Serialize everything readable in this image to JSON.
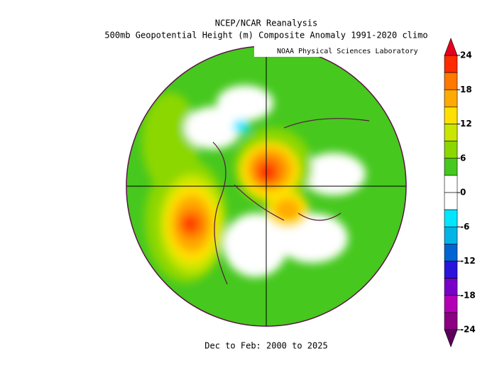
{
  "title": "NCEP/NCAR Reanalysis",
  "subtitle": "500mb Geopotential Height (m) Composite Anomaly 1991-2020 climo",
  "credit": "NOAA Physical Sciences Laboratory",
  "footer": "Dec to Feb: 2000 to 2025",
  "colorbar": {
    "ticks": [
      24,
      18,
      12,
      6,
      0,
      -6,
      -12,
      -18,
      -24
    ],
    "colors": [
      "#ff2a00",
      "#ff7800",
      "#ffaa00",
      "#ffe000",
      "#c8e600",
      "#8cd700",
      "#46c81e",
      "#ffffff",
      "#ffffff",
      "#00e6ff",
      "#00b4e6",
      "#0064d2",
      "#2a14dc",
      "#7800c8",
      "#b400b4",
      "#8c0082"
    ],
    "top_color": "#e6001e",
    "bottom_color": "#5a005a"
  }
}
